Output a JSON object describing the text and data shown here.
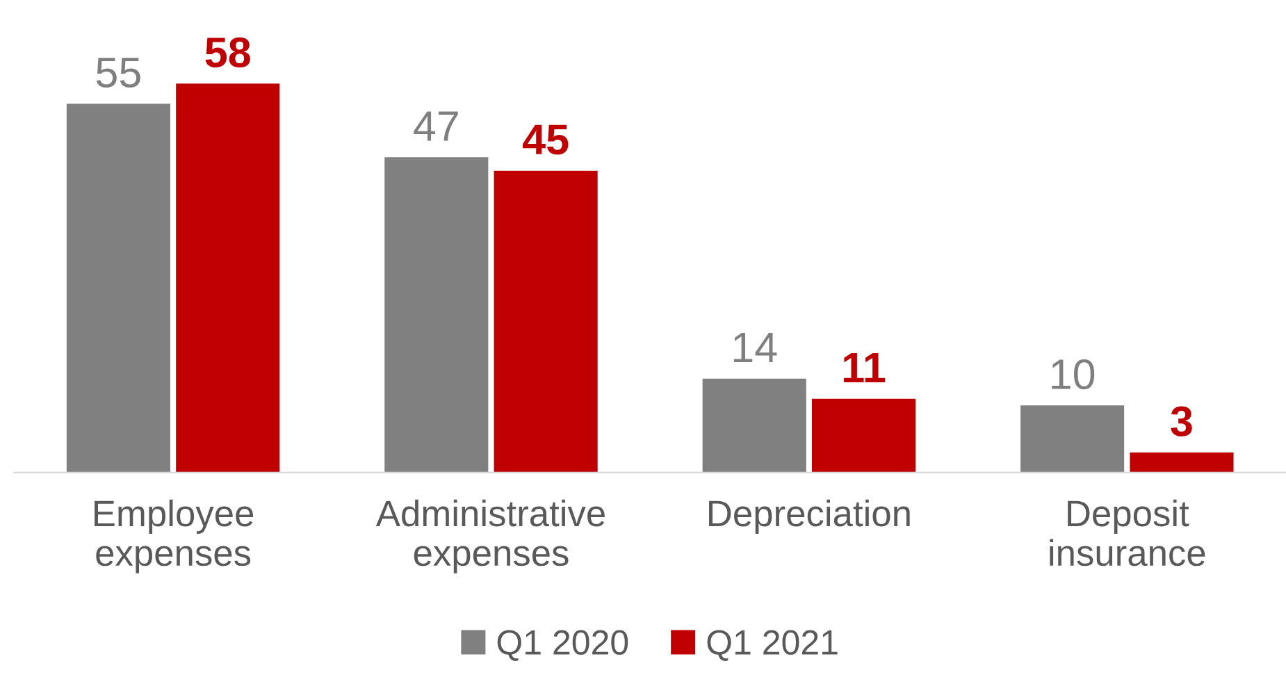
{
  "chart_data": {
    "type": "bar",
    "categories": [
      "Employee\nexpenses",
      "Administrative\nexpenses",
      "Depreciation",
      "Deposit\ninsurance"
    ],
    "series": [
      {
        "name": "Q1 2020",
        "color": "#808080",
        "values": [
          55,
          47,
          14,
          10
        ]
      },
      {
        "name": "Q1 2021",
        "color": "#c00000",
        "values": [
          58,
          45,
          11,
          3
        ]
      }
    ],
    "data_labels": true,
    "legend": "bottom",
    "grid": false
  }
}
